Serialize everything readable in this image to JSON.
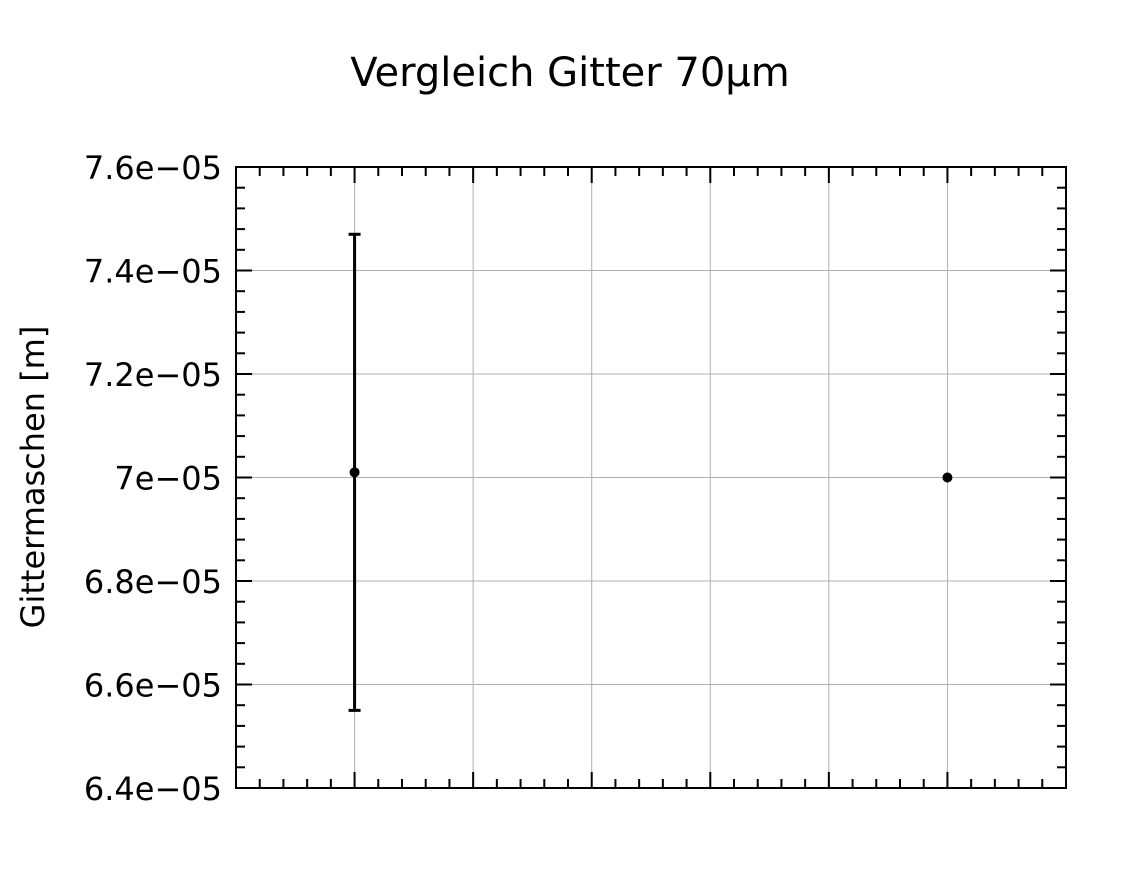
{
  "chart_data": {
    "type": "scatter",
    "title": "Vergleich Gitter 70μm",
    "xlabel": "",
    "ylabel": "Gittermaschen [m]",
    "ylim": [
      6.4e-05,
      7.6e-05
    ],
    "xlim": [
      0,
      7
    ],
    "yticks": [
      6.4e-05,
      6.6e-05,
      6.8e-05,
      7e-05,
      7.2e-05,
      7.4e-05,
      7.6e-05
    ],
    "ytick_labels": [
      "6.4e−05",
      "6.6e−05",
      "6.8e−05",
      "7e−05",
      "7.2e−05",
      "7.4e−05",
      "7.6e−05"
    ],
    "xticks": [
      1,
      2,
      3,
      4,
      5,
      6
    ],
    "grid": true,
    "points": [
      {
        "x": 1,
        "y": 7.01e-05,
        "yerr_low": 6.55e-05,
        "yerr_high": 7.47e-05
      },
      {
        "x": 6,
        "y": 7e-05
      }
    ],
    "color": "#000000"
  }
}
